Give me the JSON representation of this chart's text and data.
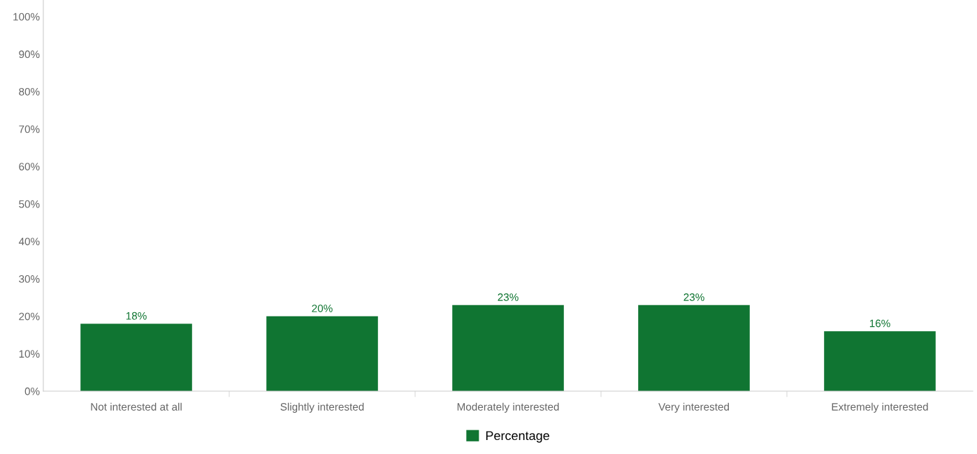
{
  "chart_data": {
    "type": "bar",
    "categories": [
      "Not interested at all",
      "Slightly interested",
      "Moderately interested",
      "Very interested",
      "Extremely interested"
    ],
    "series": [
      {
        "name": "Percentage",
        "color": "#107532",
        "values": [
          18,
          20,
          23,
          23,
          16
        ]
      }
    ],
    "ylim": [
      0,
      105
    ],
    "yticks": [
      {
        "value": 0,
        "label": "0%"
      },
      {
        "value": 10,
        "label": "10%"
      },
      {
        "value": 20,
        "label": "20%"
      },
      {
        "value": 30,
        "label": "30%"
      },
      {
        "value": 40,
        "label": "40%"
      },
      {
        "value": 50,
        "label": "50%"
      },
      {
        "value": 60,
        "label": "60%"
      },
      {
        "value": 70,
        "label": "70%"
      },
      {
        "value": 80,
        "label": "80%"
      },
      {
        "value": 90,
        "label": "90%"
      },
      {
        "value": 100,
        "label": "100%"
      }
    ],
    "value_labels": [
      "18%",
      "20%",
      "23%",
      "23%",
      "16%"
    ],
    "grid": false,
    "legend": "bottom"
  }
}
